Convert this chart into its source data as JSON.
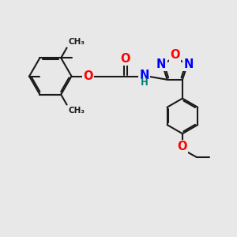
{
  "bg_color": "#e8e8e8",
  "bond_color": "#1a1a1a",
  "bond_width": 1.5,
  "dbo": 0.055,
  "atom_colors": {
    "O": "#ff0000",
    "N": "#0000ff",
    "H": "#008080",
    "C": "#1a1a1a"
  },
  "font_size_atom": 10.5,
  "font_size_small": 8.5,
  "figsize": [
    3.0,
    3.0
  ],
  "dpi": 100,
  "xlim": [
    0,
    10
  ],
  "ylim": [
    0,
    10
  ]
}
